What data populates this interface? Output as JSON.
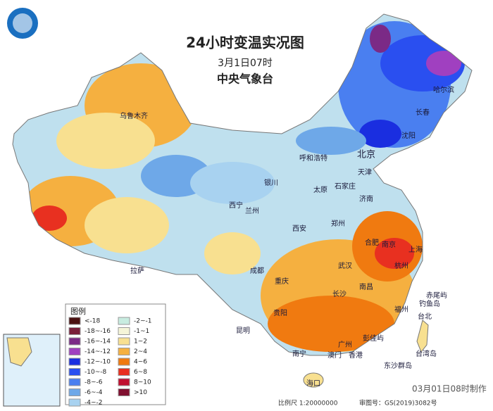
{
  "header": {
    "title": "24小时变温实况图",
    "date": "3月1日07时",
    "agency": "中央气象台"
  },
  "legend": {
    "title": "图例",
    "items": [
      {
        "label": "<-18",
        "color": "#4a1010"
      },
      {
        "label": "-18~-16",
        "color": "#7a1f3a"
      },
      {
        "label": "-16~-14",
        "color": "#7b2a86"
      },
      {
        "label": "-14~-12",
        "color": "#a040c0"
      },
      {
        "label": "-12~-10",
        "color": "#1a2ee0"
      },
      {
        "label": "-10~-8",
        "color": "#2a4ff0"
      },
      {
        "label": "-8~-6",
        "color": "#4a7ff0"
      },
      {
        "label": "-6~-4",
        "color": "#6ea8e8"
      },
      {
        "label": "-4~-2",
        "color": "#a8d2f0"
      },
      {
        "label": "-2~-1",
        "color": "#c8ece0"
      },
      {
        "label": "-1~1",
        "color": "#f5f5d8"
      },
      {
        "label": "1~2",
        "color": "#f8e090"
      },
      {
        "label": "2~4",
        "color": "#f5b040"
      },
      {
        "label": "4~6",
        "color": "#f07a10"
      },
      {
        "label": "6~8",
        "color": "#e83020"
      },
      {
        "label": "8~10",
        "color": "#c01030"
      },
      {
        "label": ">10",
        "color": "#801030"
      }
    ]
  },
  "cities": [
    "乌鲁木齐",
    "哈尔滨",
    "长春",
    "沈阳",
    "北京",
    "天津",
    "呼和浩特",
    "石家庄",
    "银川",
    "太原",
    "济南",
    "西宁",
    "兰州",
    "郑州",
    "西安",
    "合肥",
    "南京",
    "上海",
    "杭州",
    "武汉",
    "成都",
    "拉萨",
    "重庆",
    "长沙",
    "南昌",
    "福州",
    "台北",
    "贵阳",
    "昆明",
    "广州",
    "南宁",
    "澳门",
    "香港",
    "海口",
    "赤尾屿",
    "钓鱼岛",
    "彭佳屿",
    "台湾岛",
    "东沙群岛"
  ],
  "footer": {
    "scale": "比例尺 1:20000000",
    "approval": "审图号：GS(2019)3082号",
    "made": "03月01日08时制作"
  }
}
